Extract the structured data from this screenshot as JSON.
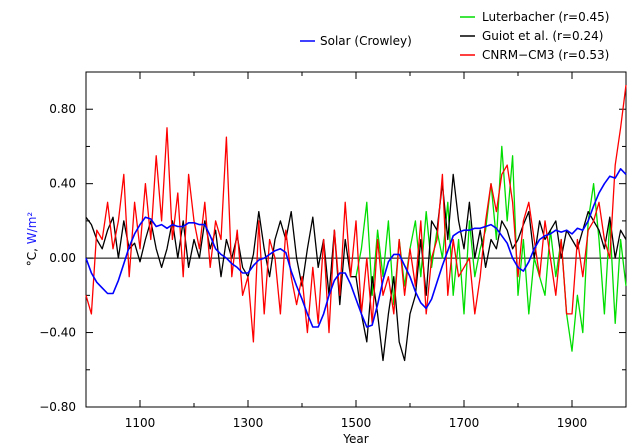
{
  "chart_data": {
    "type": "line",
    "title": "",
    "xlabel": "Year",
    "ylabel_parts": [
      "°C, ",
      "W/m²"
    ],
    "ylabel_colors": [
      "#000000",
      "#1a1aff"
    ],
    "xlim": [
      1000,
      2000
    ],
    "ylim": [
      -0.8,
      1.0
    ],
    "x_ticks": [
      1100,
      1300,
      1500,
      1700,
      1900
    ],
    "x_tick_labels": [
      "1100",
      "1300",
      "1500",
      "1700",
      "1900"
    ],
    "y_ticks": [
      -0.8,
      -0.4,
      0.0,
      0.4,
      0.8
    ],
    "y_tick_labels": [
      "−0.80",
      "−0.40",
      "0.00",
      "0.40",
      "0.80"
    ],
    "zero_line": true,
    "grid": false,
    "legend_left": {
      "name": "Solar (Crowley)",
      "color": "#0000ff"
    },
    "legend_right": [
      {
        "name": "Luterbacher (r=0.45)",
        "color": "#00dd00"
      },
      {
        "name": "Guiot et al. (r=0.24)",
        "color": "#000000"
      },
      {
        "name": "CNRM−CM3 (r=0.53)",
        "color": "#ff0000"
      }
    ],
    "series": [
      {
        "name": "Solar (Crowley)",
        "color": "#0000ff",
        "x": [
          1000,
          1010,
          1020,
          1030,
          1040,
          1050,
          1060,
          1070,
          1080,
          1090,
          1100,
          1110,
          1120,
          1130,
          1140,
          1150,
          1160,
          1170,
          1180,
          1190,
          1200,
          1210,
          1220,
          1230,
          1240,
          1250,
          1260,
          1270,
          1280,
          1290,
          1300,
          1310,
          1320,
          1330,
          1340,
          1350,
          1360,
          1370,
          1380,
          1390,
          1400,
          1410,
          1420,
          1430,
          1440,
          1450,
          1460,
          1470,
          1480,
          1490,
          1500,
          1510,
          1520,
          1530,
          1540,
          1550,
          1560,
          1570,
          1580,
          1590,
          1600,
          1610,
          1620,
          1630,
          1640,
          1650,
          1660,
          1670,
          1680,
          1690,
          1700,
          1710,
          1720,
          1730,
          1740,
          1750,
          1760,
          1770,
          1780,
          1790,
          1800,
          1810,
          1820,
          1830,
          1840,
          1850,
          1860,
          1870,
          1880,
          1890,
          1900,
          1910,
          1920,
          1930,
          1940,
          1950,
          1960,
          1970,
          1980,
          1990,
          2000
        ],
        "y": [
          0.0,
          -0.08,
          -0.13,
          -0.16,
          -0.19,
          -0.19,
          -0.12,
          -0.03,
          0.06,
          0.13,
          0.18,
          0.22,
          0.21,
          0.17,
          0.18,
          0.16,
          0.18,
          0.17,
          0.17,
          0.19,
          0.19,
          0.18,
          0.18,
          0.12,
          0.05,
          0.02,
          0.0,
          -0.03,
          -0.05,
          -0.08,
          -0.08,
          -0.04,
          -0.01,
          0.0,
          0.02,
          0.04,
          0.05,
          0.03,
          -0.07,
          -0.15,
          -0.22,
          -0.3,
          -0.37,
          -0.37,
          -0.3,
          -0.2,
          -0.12,
          -0.08,
          -0.08,
          -0.14,
          -0.22,
          -0.3,
          -0.37,
          -0.36,
          -0.25,
          -0.12,
          -0.02,
          0.02,
          0.02,
          -0.04,
          -0.1,
          -0.18,
          -0.24,
          -0.27,
          -0.22,
          -0.13,
          -0.04,
          0.04,
          0.12,
          0.14,
          0.15,
          0.15,
          0.16,
          0.16,
          0.17,
          0.18,
          0.16,
          0.12,
          0.08,
          0.0,
          -0.05,
          -0.07,
          -0.02,
          0.05,
          0.1,
          0.12,
          0.13,
          0.15,
          0.14,
          0.15,
          0.13,
          0.16,
          0.15,
          0.2,
          0.28,
          0.35,
          0.4,
          0.44,
          0.43,
          0.48,
          0.45
        ]
      },
      {
        "name": "Guiot et al. (r=0.24)",
        "color": "#000000",
        "x": [
          1000,
          1010,
          1020,
          1030,
          1040,
          1050,
          1060,
          1070,
          1080,
          1090,
          1100,
          1110,
          1120,
          1130,
          1140,
          1150,
          1160,
          1170,
          1180,
          1190,
          1200,
          1210,
          1220,
          1230,
          1240,
          1250,
          1260,
          1270,
          1280,
          1290,
          1300,
          1310,
          1320,
          1330,
          1340,
          1350,
          1360,
          1370,
          1380,
          1390,
          1400,
          1410,
          1420,
          1430,
          1440,
          1450,
          1460,
          1470,
          1480,
          1490,
          1500,
          1510,
          1520,
          1530,
          1540,
          1550,
          1560,
          1570,
          1580,
          1590,
          1600,
          1610,
          1620,
          1630,
          1640,
          1650,
          1660,
          1670,
          1680,
          1690,
          1700,
          1710,
          1720,
          1730,
          1740,
          1750,
          1760,
          1770,
          1780,
          1790,
          1800,
          1810,
          1820,
          1830,
          1840,
          1850,
          1860,
          1870,
          1880,
          1890,
          1900,
          1910,
          1920,
          1930,
          1940,
          1950,
          1960,
          1970,
          1980,
          1990,
          2000
        ],
        "y": [
          0.22,
          0.18,
          0.1,
          0.05,
          0.15,
          0.22,
          0.0,
          0.2,
          0.05,
          0.08,
          -0.02,
          0.1,
          0.2,
          0.05,
          -0.05,
          0.05,
          0.2,
          0.0,
          0.2,
          -0.05,
          0.1,
          0.0,
          0.2,
          0.05,
          0.15,
          -0.1,
          0.1,
          0.0,
          0.12,
          -0.05,
          -0.1,
          0.02,
          0.25,
          0.05,
          -0.1,
          0.1,
          0.2,
          0.1,
          0.25,
          0.0,
          -0.15,
          0.05,
          0.22,
          -0.05,
          0.1,
          -0.2,
          0.15,
          -0.25,
          0.1,
          -0.1,
          -0.1,
          -0.3,
          -0.45,
          -0.1,
          -0.3,
          -0.55,
          -0.3,
          -0.1,
          -0.45,
          -0.55,
          -0.3,
          -0.2,
          0.1,
          -0.2,
          0.2,
          0.15,
          0.4,
          0.1,
          0.45,
          0.2,
          0.05,
          0.3,
          0.0,
          0.15,
          -0.05,
          0.1,
          0.05,
          0.2,
          0.15,
          0.05,
          0.1,
          0.18,
          0.25,
          0.0,
          0.2,
          0.1,
          0.15,
          0.2,
          0.0,
          0.15,
          0.1,
          0.05,
          0.15,
          0.25,
          0.2,
          0.15,
          0.05,
          0.22,
          0.0,
          0.15,
          0.1
        ]
      },
      {
        "name": "Luterbacher (r=0.45)",
        "color": "#00dd00",
        "x": [
          1500,
          1510,
          1520,
          1530,
          1540,
          1550,
          1560,
          1570,
          1580,
          1590,
          1600,
          1610,
          1620,
          1630,
          1640,
          1650,
          1660,
          1670,
          1680,
          1690,
          1700,
          1710,
          1720,
          1730,
          1740,
          1750,
          1760,
          1770,
          1780,
          1790,
          1800,
          1810,
          1820,
          1830,
          1840,
          1850,
          1860,
          1870,
          1880,
          1890,
          1900,
          1910,
          1920,
          1930,
          1940,
          1950,
          1960,
          1970,
          1980,
          1990,
          2000
        ],
        "y": [
          -0.1,
          0.05,
          0.3,
          -0.2,
          0.15,
          -0.1,
          0.2,
          -0.25,
          0.1,
          -0.15,
          0.05,
          0.2,
          -0.1,
          0.25,
          -0.05,
          0.15,
          0.0,
          0.3,
          -0.2,
          0.1,
          -0.3,
          0.2,
          -0.1,
          0.05,
          0.15,
          0.4,
          0.1,
          0.6,
          0.2,
          0.55,
          -0.2,
          0.1,
          -0.3,
          0.0,
          -0.1,
          -0.2,
          0.15,
          -0.1,
          0.1,
          -0.3,
          -0.5,
          -0.2,
          -0.4,
          0.2,
          0.4,
          0.1,
          -0.3,
          0.2,
          -0.35,
          0.1,
          -0.15
        ]
      },
      {
        "name": "CNRM−CM3 (r=0.53)",
        "color": "#ff0000",
        "x": [
          1000,
          1010,
          1020,
          1030,
          1040,
          1050,
          1060,
          1070,
          1080,
          1090,
          1100,
          1110,
          1120,
          1130,
          1140,
          1150,
          1160,
          1170,
          1180,
          1190,
          1200,
          1210,
          1220,
          1230,
          1240,
          1250,
          1260,
          1270,
          1280,
          1290,
          1300,
          1310,
          1320,
          1330,
          1340,
          1350,
          1360,
          1370,
          1380,
          1390,
          1400,
          1410,
          1420,
          1430,
          1440,
          1450,
          1460,
          1470,
          1480,
          1490,
          1500,
          1510,
          1520,
          1530,
          1540,
          1550,
          1560,
          1570,
          1580,
          1590,
          1600,
          1610,
          1620,
          1630,
          1640,
          1650,
          1660,
          1670,
          1680,
          1690,
          1700,
          1710,
          1720,
          1730,
          1740,
          1750,
          1760,
          1770,
          1780,
          1790,
          1800,
          1810,
          1820,
          1830,
          1840,
          1850,
          1860,
          1870,
          1880,
          1890,
          1900,
          1910,
          1920,
          1930,
          1940,
          1950,
          1960,
          1970,
          1980,
          1990,
          2000
        ],
        "y": [
          -0.2,
          -0.3,
          0.15,
          0.1,
          0.3,
          0.05,
          0.2,
          0.45,
          -0.1,
          0.3,
          0.05,
          0.4,
          0.1,
          0.55,
          0.2,
          0.7,
          0.1,
          0.35,
          -0.1,
          0.45,
          0.2,
          0.05,
          0.3,
          -0.05,
          0.2,
          0.1,
          0.65,
          -0.1,
          0.15,
          -0.2,
          -0.1,
          -0.45,
          0.2,
          -0.3,
          0.1,
          0.0,
          -0.3,
          0.15,
          -0.1,
          -0.25,
          -0.1,
          -0.4,
          -0.05,
          -0.35,
          0.1,
          -0.4,
          0.15,
          -0.2,
          0.3,
          -0.1,
          0.2,
          -0.3,
          0.0,
          -0.35,
          0.1,
          -0.2,
          -0.1,
          -0.3,
          0.1,
          -0.2,
          0.05,
          -0.15,
          0.2,
          -0.3,
          0.0,
          0.1,
          0.45,
          -0.2,
          0.1,
          -0.1,
          -0.05,
          0.0,
          -0.3,
          -0.1,
          0.2,
          0.4,
          0.25,
          0.45,
          0.5,
          0.3,
          -0.1,
          0.2,
          0.3,
          0.1,
          -0.1,
          0.2,
          0.0,
          -0.2,
          0.1,
          -0.3,
          -0.3,
          0.1,
          -0.1,
          0.15,
          0.2,
          0.3,
          0.1,
          0.0,
          0.5,
          0.7,
          0.93
        ]
      }
    ]
  }
}
